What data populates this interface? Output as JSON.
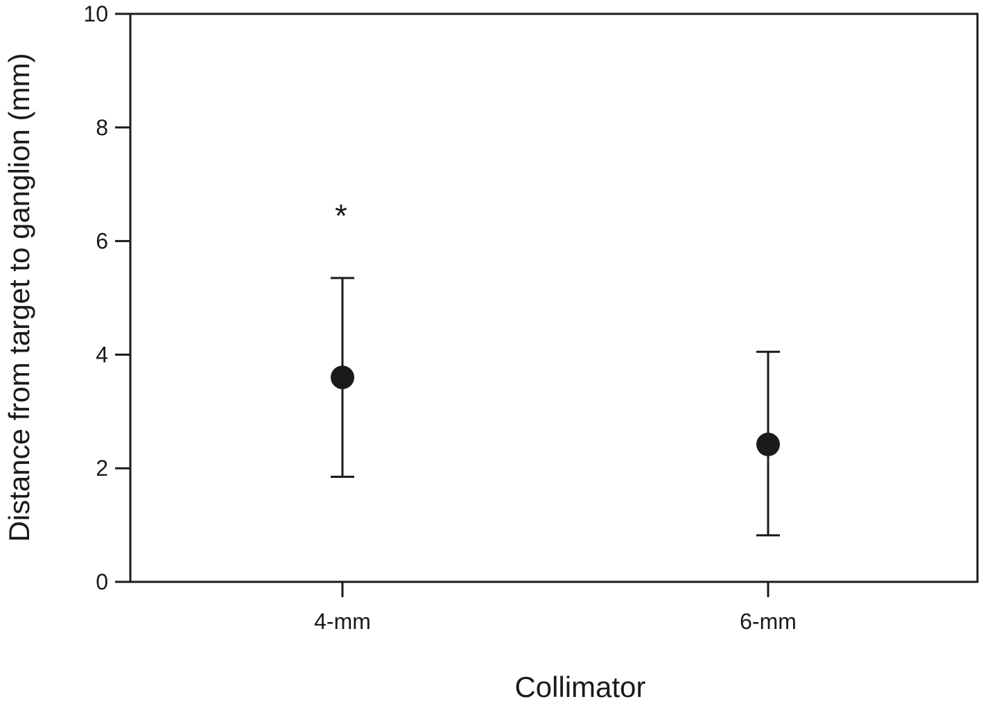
{
  "chart_data": {
    "type": "scatter",
    "title": "",
    "xlabel": "Collimator",
    "ylabel": "Distance from target to ganglion (mm)",
    "ylim": [
      0,
      10
    ],
    "yticks": [
      0,
      2,
      4,
      6,
      8,
      10
    ],
    "categories": [
      "4-mm",
      "6-mm"
    ],
    "points": [
      {
        "category": "4-mm",
        "mean": 3.6,
        "lower": 1.85,
        "upper": 5.35,
        "annotation": "*"
      },
      {
        "category": "6-mm",
        "mean": 2.42,
        "lower": 0.82,
        "upper": 4.05,
        "annotation": ""
      }
    ],
    "grid": false,
    "legend": "none",
    "colors": {
      "axis": "#1a1a1a",
      "marker": "#1a1a1a",
      "errorbar": "#1a1a1a"
    }
  }
}
